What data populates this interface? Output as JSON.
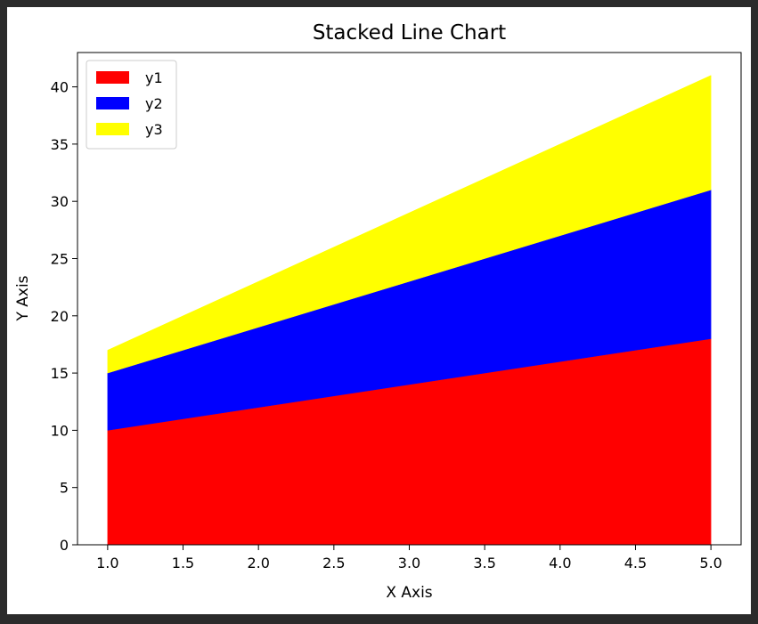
{
  "chart_data": {
    "type": "area",
    "stacked": true,
    "title": "Stacked Line Chart",
    "xlabel": "X Axis",
    "ylabel": "Y Axis",
    "x": [
      1,
      2,
      3,
      4,
      5
    ],
    "xlim": [
      0.8,
      5.2
    ],
    "ylim": [
      0,
      43
    ],
    "xticks": [
      "1.0",
      "1.5",
      "2.0",
      "2.5",
      "3.0",
      "3.5",
      "4.0",
      "4.5",
      "5.0"
    ],
    "yticks": [
      "0",
      "5",
      "10",
      "15",
      "20",
      "25",
      "30",
      "35",
      "40"
    ],
    "grid": false,
    "legend_position": "top-left",
    "series": [
      {
        "name": "y1",
        "color": "#ff0000",
        "values": [
          10,
          12,
          14,
          16,
          18
        ]
      },
      {
        "name": "y2",
        "color": "#0000ff",
        "values": [
          5,
          7,
          9,
          11,
          13
        ]
      },
      {
        "name": "y3",
        "color": "#ffff00",
        "values": [
          2,
          4,
          6,
          8,
          10
        ]
      }
    ]
  }
}
